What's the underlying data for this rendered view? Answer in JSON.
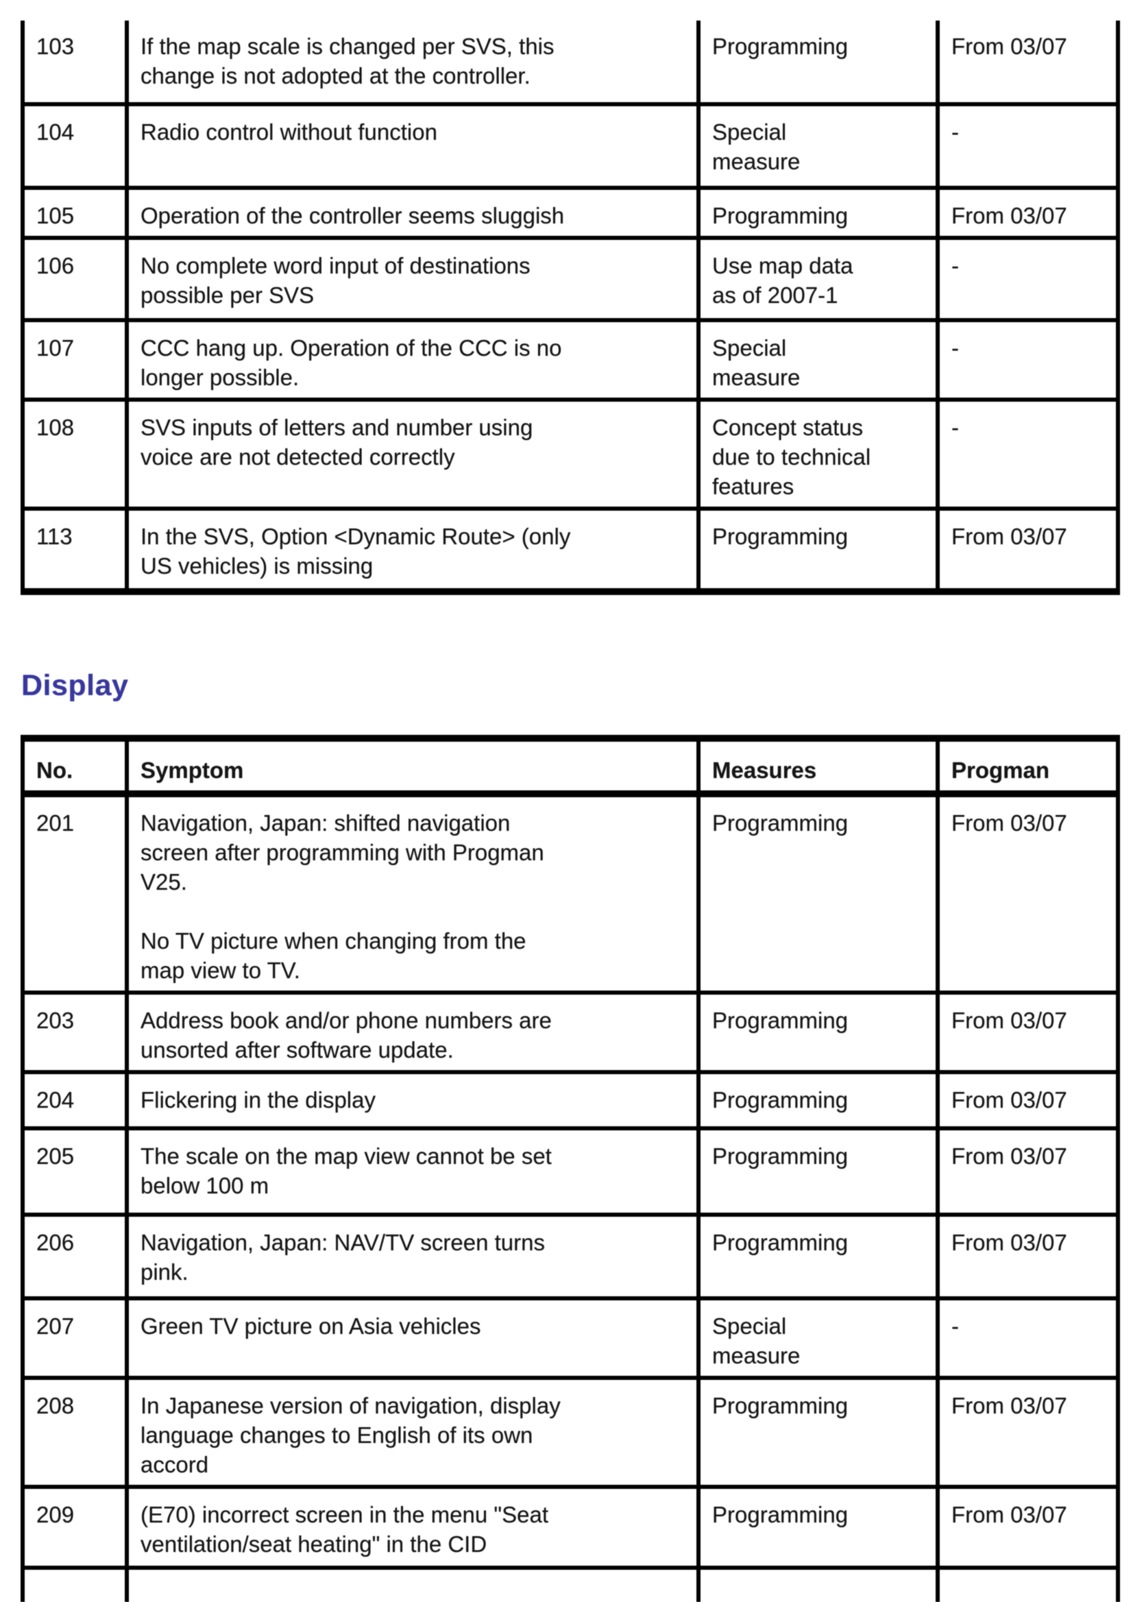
{
  "heading": {
    "text": "Display",
    "color": "#38389e"
  },
  "table1": {
    "description": "continued symptom table from previous page",
    "rows": [
      {
        "no": "103",
        "symptom": "If the map scale is changed per SVS, this\nchange is not adopted at the controller.",
        "measures": "Programming",
        "progman": "From 03/07"
      },
      {
        "no": "104",
        "symptom": "Radio control without function",
        "measures": "Special\nmeasure",
        "progman": "-"
      },
      {
        "no": "105",
        "symptom": "Operation of the controller seems sluggish",
        "measures": "Programming",
        "progman": "From 03/07"
      },
      {
        "no": "106",
        "symptom": "No complete word input of destinations\npossible per SVS",
        "measures": "Use map data\nas of 2007-1",
        "progman": "-"
      },
      {
        "no": "107",
        "symptom": "CCC hang up. Operation of the CCC is no\nlonger possible.",
        "measures": "Special\nmeasure",
        "progman": "-"
      },
      {
        "no": "108",
        "symptom": "SVS inputs of letters and number using\nvoice are not detected correctly",
        "measures": "Concept status\ndue to technical\nfeatures",
        "progman": "-"
      },
      {
        "no": "113",
        "symptom": "In the SVS, Option <Dynamic Route> (only\nUS vehicles) is missing",
        "measures": "Programming",
        "progman": "From 03/07"
      }
    ]
  },
  "table2": {
    "headers": {
      "no": "No.",
      "symptom": "Symptom",
      "measures": "Measures",
      "progman": "Progman"
    },
    "rows": [
      {
        "no": "201",
        "symptom": "Navigation, Japan: shifted navigation\nscreen after programming with Progman\nV25.\n\nNo TV picture when changing from the\nmap view to TV.",
        "measures": "Programming",
        "progman": "From 03/07"
      },
      {
        "no": "203",
        "symptom": "Address book and/or phone numbers are\nunsorted after software update.",
        "measures": "Programming",
        "progman": "From 03/07"
      },
      {
        "no": "204",
        "symptom": "Flickering in the display",
        "measures": "Programming",
        "progman": "From 03/07"
      },
      {
        "no": "205",
        "symptom": "The scale on the map view cannot be set\nbelow 100 m",
        "measures": "Programming",
        "progman": "From 03/07"
      },
      {
        "no": "206",
        "symptom": "Navigation, Japan: NAV/TV screen turns\npink.",
        "measures": "Programming",
        "progman": "From 03/07"
      },
      {
        "no": "207",
        "symptom": "Green TV picture on Asia vehicles",
        "measures": "Special\nmeasure",
        "progman": "-"
      },
      {
        "no": "208",
        "symptom": "In Japanese version of navigation, display\nlanguage changes to English of its own\naccord",
        "measures": "Programming",
        "progman": "From 03/07"
      },
      {
        "no": "209",
        "symptom": "(E70) incorrect screen in the menu \"Seat\nventilation/seat heating\" in the CID",
        "measures": "Programming",
        "progman": "From 03/07"
      }
    ]
  }
}
